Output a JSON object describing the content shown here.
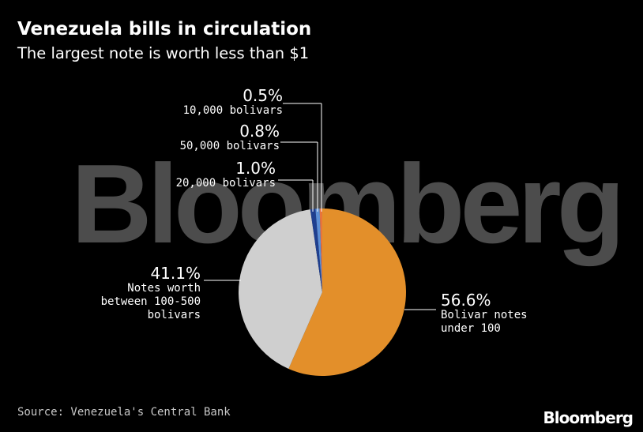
{
  "title": "Venezuela bills in circulation",
  "subtitle": "The largest note is worth less than $1",
  "source": "Source: Venezuela's Central Bank",
  "brand": "Bloomberg",
  "watermark": "Bloomberg",
  "chart_data": {
    "type": "pie",
    "title": "Venezuela bills in circulation",
    "subtitle": "The largest note is worth less than $1",
    "slices": [
      {
        "label": "Bolivar notes under 100",
        "value": 56.6,
        "display": "56.6%",
        "color": "#e38f2a"
      },
      {
        "label": "Notes worth between 100-500 bolivars",
        "value": 41.1,
        "display": "41.1%",
        "color": "#cfcfcf"
      },
      {
        "label": "20,000 bolivars",
        "value": 1.0,
        "display": "1.0%",
        "color": "#1f3f8f"
      },
      {
        "label": "50,000 bolivars",
        "value": 0.8,
        "display": "0.8%",
        "color": "#5b8fd6"
      },
      {
        "label": "10,000 bolivars",
        "value": 0.5,
        "display": "0.5%",
        "color": "#e8743c"
      }
    ]
  },
  "labels": {
    "s0": {
      "pct": "56.6%",
      "l1": "Bolivar notes",
      "l2": "under 100"
    },
    "s1": {
      "pct": "41.1%",
      "l1": "Notes worth",
      "l2": "between 100-500",
      "l3": "bolivars"
    },
    "s2": {
      "pct": "1.0%",
      "l1": "20,000 bolivars"
    },
    "s3": {
      "pct": "0.8%",
      "l1": "50,000 bolivars"
    },
    "s4": {
      "pct": "0.5%",
      "l1": "10,000 bolivars"
    }
  }
}
